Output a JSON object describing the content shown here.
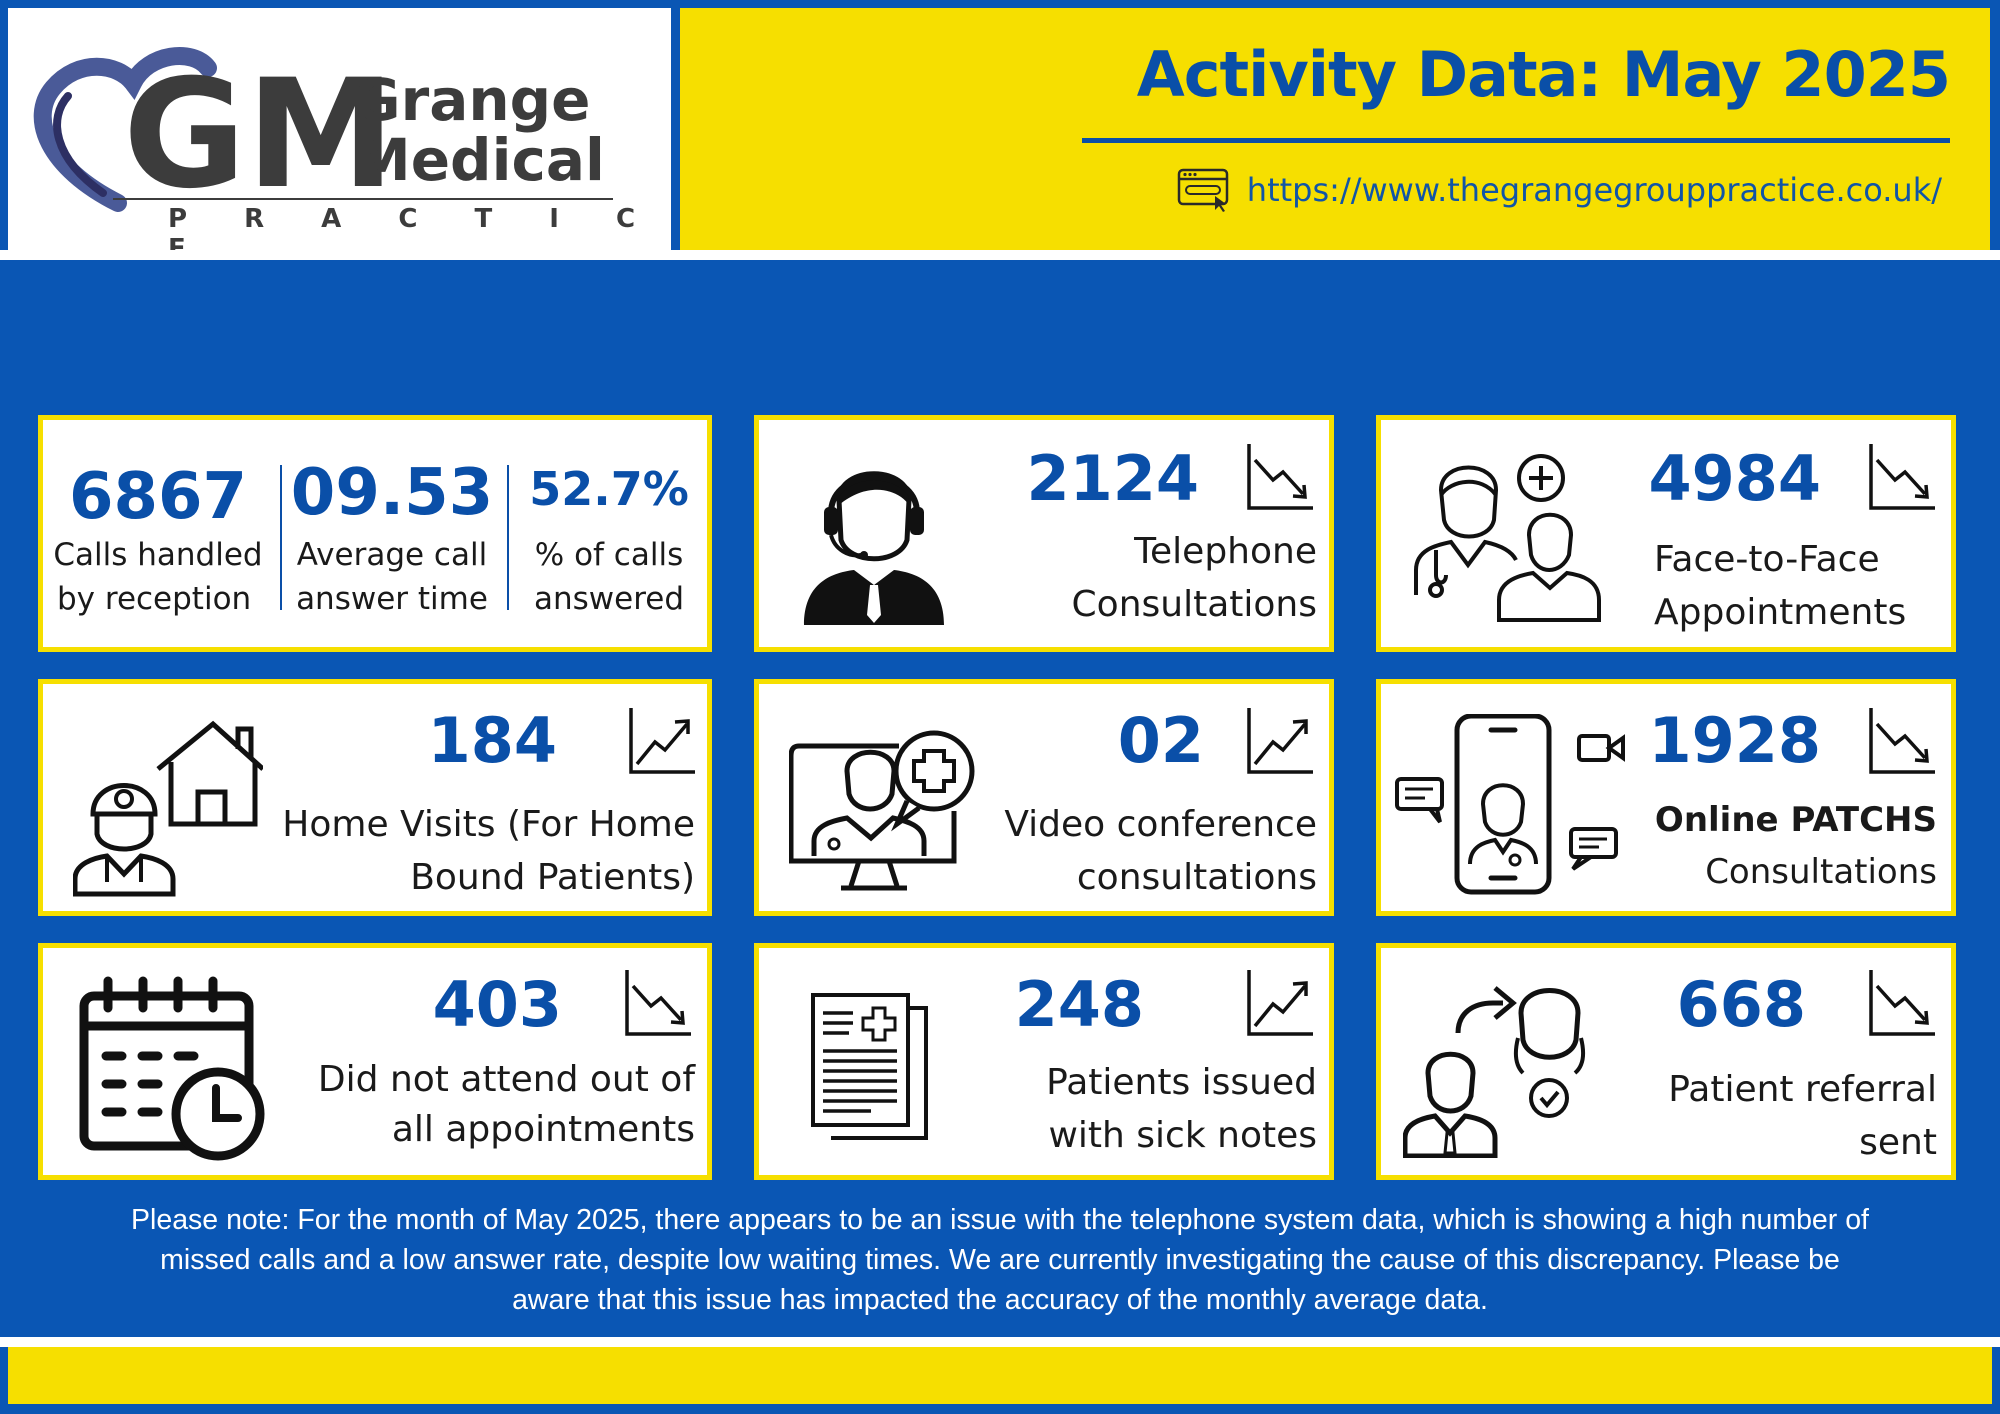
{
  "logo": {
    "monogram": "GM",
    "line1": "Grange",
    "line2": "Medical",
    "line3": "P R A C T I C E"
  },
  "header": {
    "title": "Activity Data: May 2025",
    "url": "https://www.thegrangegrouppractice.co.uk/",
    "url_icon": "browser-window-icon"
  },
  "calls": {
    "handled_value": "6867",
    "handled_label_1": "Calls handled",
    "handled_label_2": "by reception",
    "avg_value": "09.53",
    "avg_label_1": "Average call",
    "avg_label_2": "answer time",
    "pct_value": "52.7%",
    "pct_label_1": "% of calls",
    "pct_label_2": "answered"
  },
  "cards": {
    "telephone": {
      "value": "2124",
      "label_1": "Telephone",
      "label_2": "Consultations",
      "trend": "down",
      "icon": "call-center-agent-icon"
    },
    "face": {
      "value": "4984",
      "label_1": "Face-to-Face",
      "label_2": "Appointments",
      "trend": "down",
      "icon": "doctor-patient-icon"
    },
    "home": {
      "value": "184",
      "label_1": "Home Visits (For Home",
      "label_2": "Bound Patients)",
      "trend": "up",
      "icon": "home-visit-doctor-icon"
    },
    "video": {
      "value": "02",
      "label_1": "Video conference",
      "label_2": "consultations",
      "trend": "up",
      "icon": "video-doctor-icon"
    },
    "online": {
      "value": "1928",
      "label_1": "Online PATCHS",
      "label_2": "Consultations",
      "trend": "down",
      "icon": "phone-doctor-chat-icon"
    },
    "dna": {
      "value": "403",
      "label_1": "Did not attend out of",
      "label_2": "all appointments",
      "trend": "down",
      "icon": "calendar-clock-icon"
    },
    "sick": {
      "value": "248",
      "label_1": "Patients issued",
      "label_2": "with sick notes",
      "trend": "up",
      "icon": "medical-document-icon"
    },
    "referral": {
      "value": "668",
      "label_1": "Patient referral",
      "label_2": "sent",
      "trend": "down",
      "icon": "patient-referral-icon"
    }
  },
  "note": "Please note: For the month of May 2025, there appears to be an issue with the telephone system data, which is showing a high number of missed calls and a low answer rate, despite low waiting times. We are currently investigating the cause of this discrepancy. Please be aware that this issue has impacted the accuracy of the monthly average data.",
  "colors": {
    "brand_blue": "#0a56b4",
    "number_blue": "#0a4fa8",
    "accent_yellow": "#f6df00"
  }
}
